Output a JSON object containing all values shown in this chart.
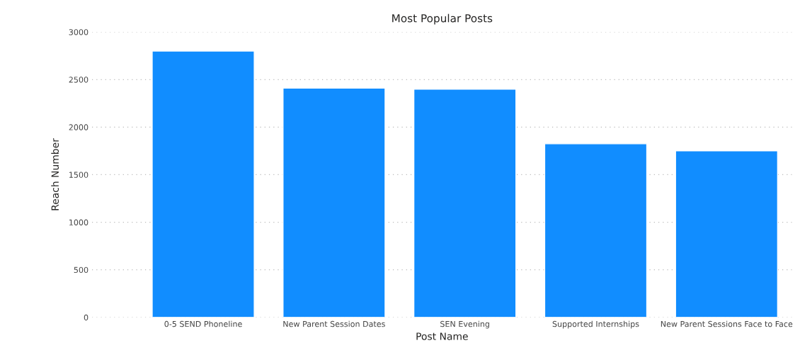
{
  "chart_data": {
    "type": "bar",
    "title": "Most Popular Posts",
    "xlabel": "Post Name",
    "ylabel": "Reach Number",
    "categories": [
      "0-5 SEND Phoneline",
      "New Parent Session Dates",
      "SEN Evening",
      "Supported Internships",
      "New Parent Sessions Face to Face"
    ],
    "values": [
      2800,
      2410,
      2400,
      1825,
      1750
    ],
    "color": "#118dff",
    "ylim": [
      0,
      3000
    ],
    "yticks": [
      0,
      500,
      1000,
      1500,
      2000,
      2500,
      3000
    ],
    "grid": "y"
  }
}
